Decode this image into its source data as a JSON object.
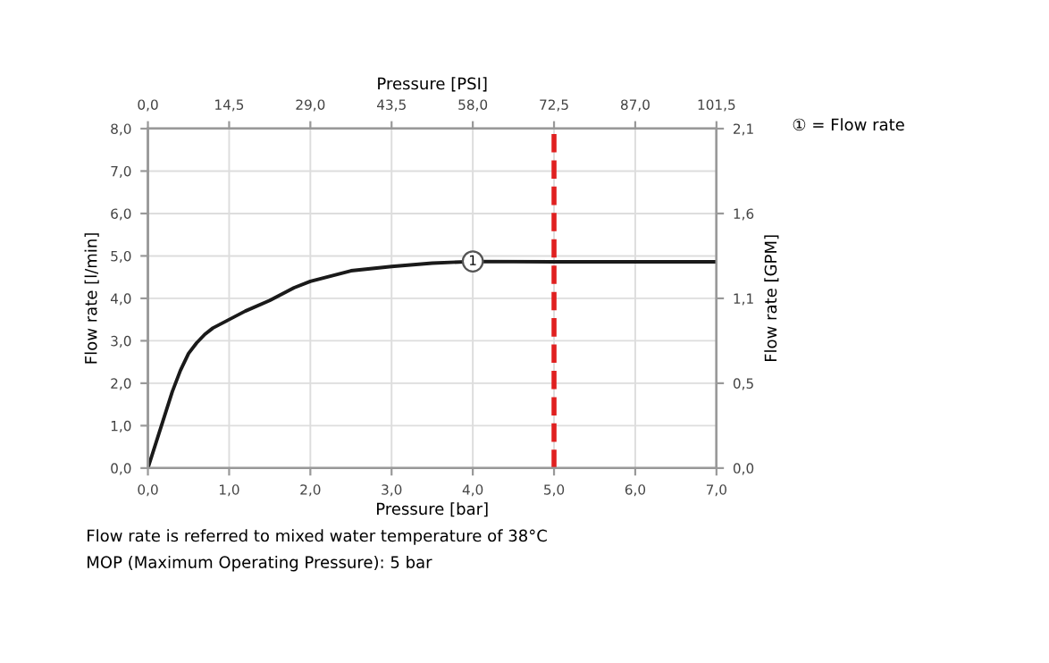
{
  "chart_data": {
    "type": "line",
    "xlabel": "Pressure [bar]",
    "ylabel": "Flow rate [l/min]",
    "y2label": "Flow rate [GPM]",
    "x2label": "Pressure [PSI]",
    "x": [
      0,
      0.1,
      0.2,
      0.3,
      0.4,
      0.5,
      0.6,
      0.7,
      0.8,
      1.0,
      1.2,
      1.5,
      1.8,
      2.0,
      2.5,
      3.0,
      3.5,
      4.0,
      5.0,
      7.0
    ],
    "series": [
      {
        "color": "#1a1a1a",
        "values": [
          0,
          0.6,
          1.2,
          1.8,
          2.3,
          2.7,
          2.95,
          3.15,
          3.3,
          3.5,
          3.7,
          3.95,
          4.25,
          4.4,
          4.65,
          4.75,
          4.83,
          4.87,
          4.86,
          4.86
        ]
      }
    ],
    "xlim": [
      0,
      7
    ],
    "xticks": [
      {
        "value": 0,
        "label": "0,0"
      },
      {
        "value": 1,
        "label": "1,0"
      },
      {
        "value": 2,
        "label": "2,0"
      },
      {
        "value": 3,
        "label": "3,0"
      },
      {
        "value": 4,
        "label": "4,0"
      },
      {
        "value": 5,
        "label": "5,0"
      },
      {
        "value": 6,
        "label": "6,0"
      },
      {
        "value": 7,
        "label": "7,0"
      }
    ],
    "ylim": [
      0,
      8
    ],
    "yticks": [
      {
        "value": 0,
        "label": "0,0"
      },
      {
        "value": 1,
        "label": "1,0"
      },
      {
        "value": 2,
        "label": "2,0"
      },
      {
        "value": 3,
        "label": "3,0"
      },
      {
        "value": 4,
        "label": "4,0"
      },
      {
        "value": 5,
        "label": "5,0"
      },
      {
        "value": 6,
        "label": "6,0"
      },
      {
        "value": 7,
        "label": "7,0"
      },
      {
        "value": 8,
        "label": "8,0"
      }
    ],
    "x2lim": [
      0,
      101.5
    ],
    "x2ticks": [
      {
        "value": 0,
        "label": "0,0"
      },
      {
        "value": 14.5,
        "label": "14,5"
      },
      {
        "value": 29,
        "label": "29,0"
      },
      {
        "value": 43.5,
        "label": "43,5"
      },
      {
        "value": 58,
        "label": "58,0"
      },
      {
        "value": 72.5,
        "label": "72,5"
      },
      {
        "value": 87,
        "label": "87,0"
      },
      {
        "value": 101.5,
        "label": "101,5"
      }
    ],
    "y2lim": [
      0,
      2.1
    ],
    "y2ticks": [
      {
        "value": 0,
        "label": "0,0"
      },
      {
        "value": 0.525,
        "label": "0,5"
      },
      {
        "value": 1.05,
        "label": "1,1"
      },
      {
        "value": 1.575,
        "label": "1,6"
      },
      {
        "value": 2.1,
        "label": "2,1"
      }
    ],
    "ref_lines": [
      {
        "axis": "x",
        "value": 5,
        "color": "#e02020",
        "line_style": "dashed"
      }
    ],
    "grid": true,
    "marker": "none",
    "line_style": "solid",
    "annotations": [
      {
        "text": "1",
        "x": 4.0,
        "y": 4.87
      },
      "① = Flow rate",
      "Flow rate is referred to mixed water temperature of 38°C",
      "MOP (Maximum Operating Pressure): 5 bar"
    ]
  }
}
